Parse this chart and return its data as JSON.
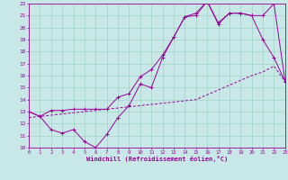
{
  "xlabel": "Windchill (Refroidissement éolien,°C)",
  "bg_color": "#c8e8e8",
  "grid_color": "#99ccbb",
  "line_color": "#990099",
  "xmin": 0,
  "xmax": 23,
  "ymin": 10,
  "ymax": 22,
  "curve_upper_x": [
    0,
    1,
    2,
    3,
    4,
    5,
    6,
    7,
    8,
    9,
    10,
    11,
    12,
    13,
    14,
    15,
    16,
    17,
    18,
    19,
    20,
    21,
    22,
    23
  ],
  "curve_upper_y": [
    13.0,
    12.6,
    13.1,
    13.1,
    13.2,
    13.2,
    13.2,
    13.2,
    14.2,
    14.5,
    15.9,
    16.5,
    17.7,
    19.2,
    20.9,
    21.2,
    22.2,
    20.4,
    21.2,
    21.2,
    21.0,
    21.0,
    22.0,
    15.5
  ],
  "curve_lower_x": [
    0,
    1,
    2,
    3,
    4,
    5,
    6,
    7,
    8,
    9,
    10,
    11,
    12,
    13,
    14,
    15,
    16,
    17,
    18,
    19,
    20,
    21,
    22,
    23
  ],
  "curve_lower_y": [
    13.0,
    12.6,
    11.5,
    11.2,
    11.5,
    10.5,
    10.0,
    11.1,
    12.5,
    13.5,
    15.3,
    15.0,
    17.5,
    19.2,
    20.9,
    21.0,
    22.2,
    20.3,
    21.2,
    21.2,
    21.0,
    19.0,
    17.5,
    15.5
  ],
  "trend_x": [
    0,
    1,
    2,
    3,
    4,
    5,
    6,
    7,
    8,
    9,
    10,
    11,
    12,
    13,
    14,
    15,
    16,
    17,
    18,
    19,
    20,
    21,
    22,
    23
  ],
  "trend_y": [
    12.5,
    12.6,
    12.7,
    12.8,
    12.9,
    13.0,
    13.1,
    13.2,
    13.3,
    13.4,
    13.5,
    13.6,
    13.7,
    13.8,
    13.9,
    14.0,
    14.4,
    14.8,
    15.2,
    15.6,
    16.0,
    16.3,
    16.8,
    15.5
  ],
  "yticks": [
    10,
    11,
    12,
    13,
    14,
    15,
    16,
    17,
    18,
    19,
    20,
    21,
    22
  ],
  "xticks": [
    0,
    1,
    2,
    3,
    4,
    5,
    6,
    7,
    8,
    9,
    10,
    11,
    12,
    13,
    14,
    15,
    16,
    17,
    18,
    19,
    20,
    21,
    22,
    23
  ]
}
